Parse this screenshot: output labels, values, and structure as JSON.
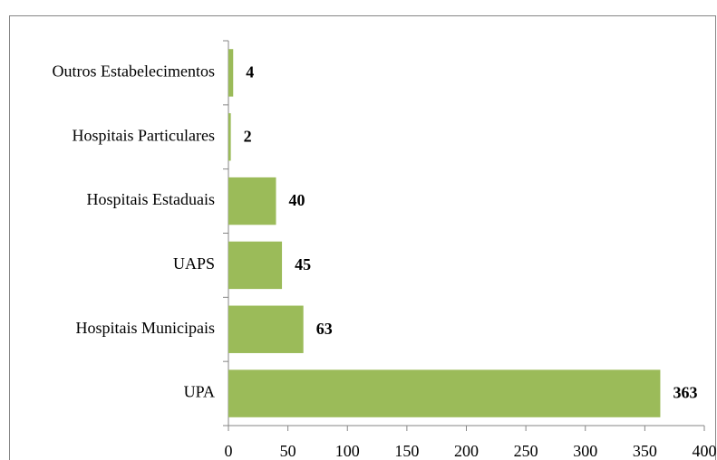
{
  "chart_data": {
    "type": "bar",
    "orientation": "horizontal",
    "categories": [
      "UPA",
      "Hospitais Municipais",
      "UAPS",
      "Hospitais Estaduais",
      "Hospitais Particulares",
      "Outros Estabelecimentos"
    ],
    "values": [
      363,
      63,
      45,
      40,
      2,
      4
    ],
    "color": "#9bbb59",
    "xlim": [
      0,
      400
    ],
    "xticks": [
      0,
      50,
      100,
      150,
      200,
      250,
      300,
      350,
      400
    ],
    "grid": false
  }
}
